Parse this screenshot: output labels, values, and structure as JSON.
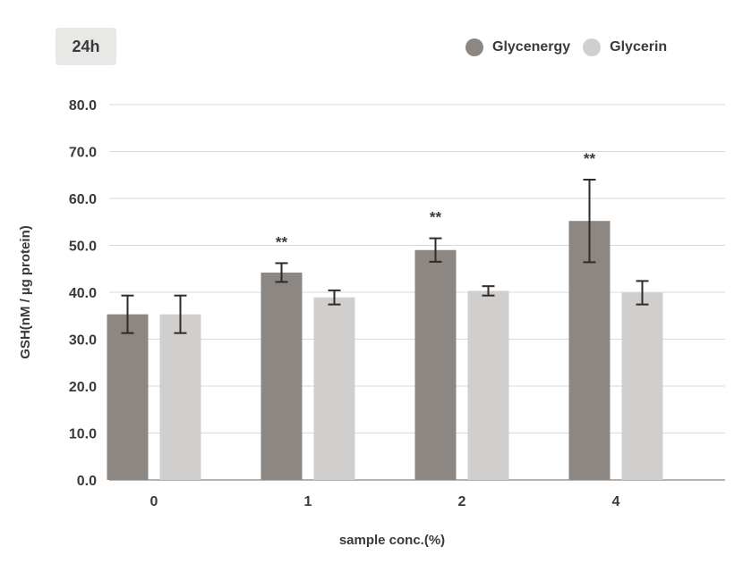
{
  "badge": "24h",
  "colors": {
    "Glycenergy": "#8c8782",
    "Glycerin": "#d0cfcd",
    "error_bar": "#2f2b28",
    "grid": "#d9d9d9"
  },
  "chart_data": {
    "type": "bar",
    "title": "",
    "xlabel": "sample conc.(%)",
    "ylabel": "GSH(nM / µg protein)",
    "categories": [
      "0",
      "1",
      "2",
      "4"
    ],
    "series": [
      {
        "name": "Glycenergy",
        "values": [
          35.3,
          44.2,
          49.0,
          55.2
        ],
        "errors": [
          4.0,
          2.0,
          2.5,
          8.8
        ]
      },
      {
        "name": "Glycerin",
        "values": [
          35.3,
          38.9,
          40.3,
          39.9
        ],
        "errors": [
          4.0,
          1.5,
          1.0,
          2.5
        ]
      }
    ],
    "significance": [
      "",
      "**",
      "**",
      "**"
    ],
    "ylim": [
      0,
      80
    ],
    "yticks": [
      "0.0",
      "10.0",
      "20.0",
      "30.0",
      "40.0",
      "50.0",
      "60.0",
      "70.0",
      "80.0"
    ],
    "grid": true,
    "legend": "top-right"
  }
}
